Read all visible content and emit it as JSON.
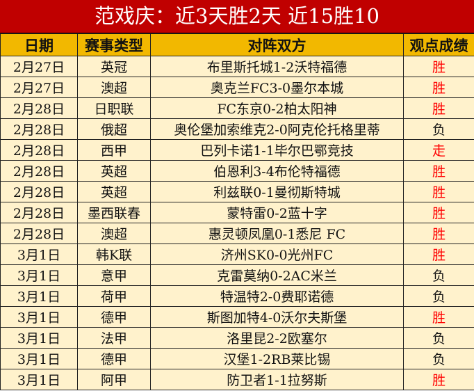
{
  "title": "范戏庆：近3天胜2天 近15胜10",
  "headers": [
    "日期",
    "赛事类型",
    "对阵双方",
    "观点成绩"
  ],
  "colors": {
    "title_bg": "#c00000",
    "header_bg": "#f2b800",
    "row_bg": "#fff2cc",
    "highlight_result": "#ff0000"
  },
  "rows": [
    {
      "date": "2月27日",
      "league": "英冠",
      "match": "布里斯托城1-2沃特福德",
      "result": "胜"
    },
    {
      "date": "2月27日",
      "league": "澳超",
      "match": "奥克兰FC3-0墨尔本城",
      "result": "胜"
    },
    {
      "date": "2月28日",
      "league": "日职联",
      "match": "FC东京0-2柏太阳神",
      "result": "胜"
    },
    {
      "date": "2月28日",
      "league": "俄超",
      "match": "奥伦堡加索维克2-0阿克伦托格里蒂",
      "result": "负"
    },
    {
      "date": "2月28日",
      "league": "西甲",
      "match": "巴列卡诺1-1毕尔巴鄂竞技",
      "result": "走"
    },
    {
      "date": "2月28日",
      "league": "英超",
      "match": "伯恩利3-4布伦特福德",
      "result": "胜"
    },
    {
      "date": "2月28日",
      "league": "英超",
      "match": "利兹联0-1曼彻斯特城",
      "result": "胜"
    },
    {
      "date": "2月28日",
      "league": "墨西联春",
      "match": "蒙特雷0-2蓝十字",
      "result": "胜"
    },
    {
      "date": "2月28日",
      "league": "澳超",
      "match": "惠灵顿凤凰0-1悉尼 FC",
      "result": "胜"
    },
    {
      "date": "3月1日",
      "league": "韩K联",
      "match": "济州SK0-0光州FC",
      "result": "胜"
    },
    {
      "date": "3月1日",
      "league": "意甲",
      "match": "克雷莫纳0-2AC米兰",
      "result": "负"
    },
    {
      "date": "3月1日",
      "league": "荷甲",
      "match": "特温特2-0费耶诺德",
      "result": "负"
    },
    {
      "date": "3月1日",
      "league": "德甲",
      "match": "斯图加特4-0沃尔夫斯堡",
      "result": "胜"
    },
    {
      "date": "3月1日",
      "league": "法甲",
      "match": "洛里昆2-2欧塞尔",
      "result": "负"
    },
    {
      "date": "3月1日",
      "league": "德甲",
      "match": "汉堡1-2RB莱比锡",
      "result": "负"
    },
    {
      "date": "3月1日",
      "league": "阿甲",
      "match": "防卫者1-1拉努斯",
      "result": "胜"
    }
  ]
}
